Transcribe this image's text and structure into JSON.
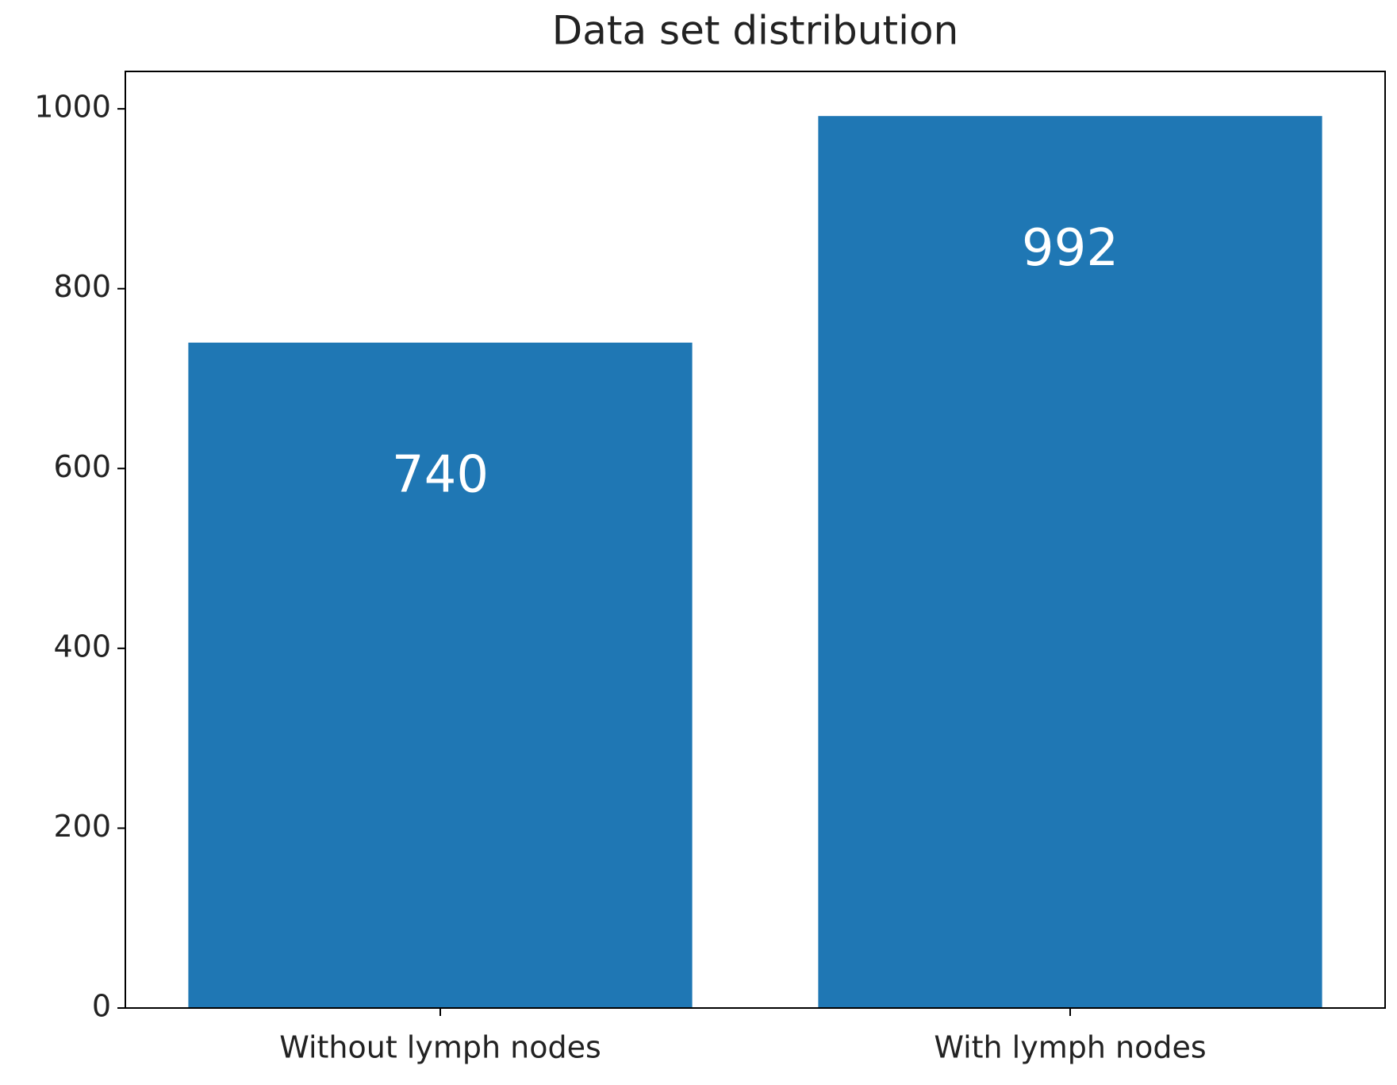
{
  "chart_data": {
    "type": "bar",
    "title": "Data set distribution",
    "categories": [
      "Without lymph nodes",
      "With lymph nodes"
    ],
    "values": [
      740,
      992
    ],
    "color": "#1f77b4",
    "ylim": [
      0,
      1041.6
    ],
    "yticks": [
      0,
      200,
      400,
      600,
      800,
      1000
    ],
    "grid": false
  }
}
